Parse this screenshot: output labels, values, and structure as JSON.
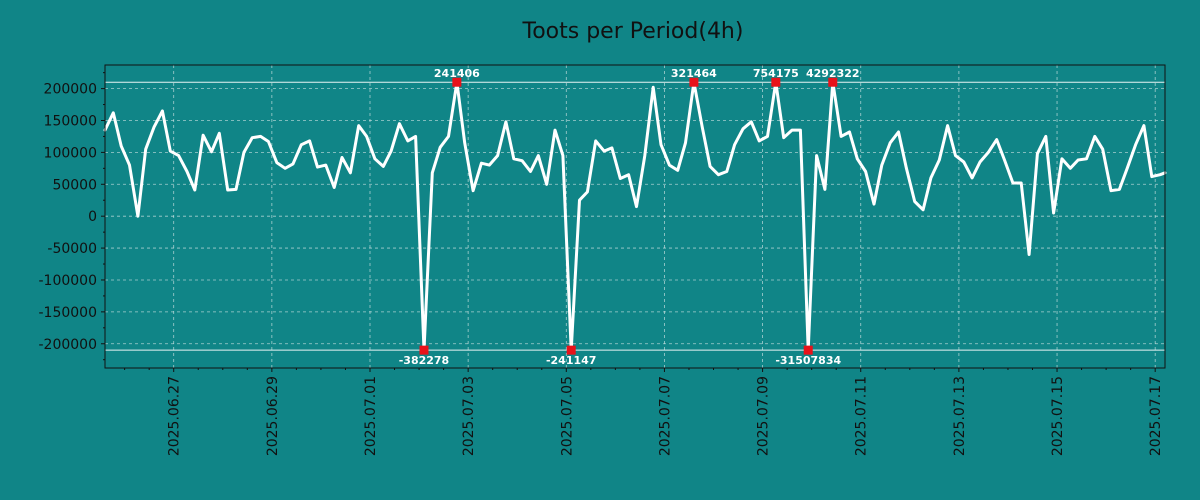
{
  "chart_data": {
    "type": "line",
    "title": "Toots per Period(4h)",
    "xlabel": "",
    "ylabel": "",
    "ylim": [
      -238000,
      237000
    ],
    "y_ticks": [
      -200000,
      -150000,
      -100000,
      -50000,
      0,
      50000,
      100000,
      150000,
      200000
    ],
    "x_tick_labels": [
      "2025.06.27",
      "2025.06.29",
      "2025.07.01",
      "2025.07.03",
      "2025.07.05",
      "2025.07.07",
      "2025.07.09",
      "2025.07.11",
      "2025.07.13",
      "2025.07.15",
      "2025.07.17"
    ],
    "x_range_days": [
      -1.4,
      20.2
    ],
    "clip_lines": [
      210000,
      -210000
    ],
    "grid": true,
    "series": [
      {
        "name": "Toots",
        "color": "#ffffff",
        "points": [
          [
            -1.4,
            135000
          ],
          [
            -1.23,
            162000
          ],
          [
            -1.07,
            110000
          ],
          [
            -0.9,
            80000
          ],
          [
            -0.73,
            0
          ],
          [
            -0.57,
            105000
          ],
          [
            -0.4,
            140000
          ],
          [
            -0.23,
            165000
          ],
          [
            -0.07,
            102000
          ],
          [
            0.1,
            95000
          ],
          [
            0.27,
            70000
          ],
          [
            0.43,
            41000
          ],
          [
            0.6,
            127000
          ],
          [
            0.77,
            101000
          ],
          [
            0.93,
            130000
          ],
          [
            1.1,
            41000
          ],
          [
            1.27,
            42000
          ],
          [
            1.43,
            100000
          ],
          [
            1.6,
            123000
          ],
          [
            1.77,
            125000
          ],
          [
            1.93,
            117000
          ],
          [
            2.1,
            84000
          ],
          [
            2.27,
            75000
          ],
          [
            2.43,
            82000
          ],
          [
            2.6,
            112000
          ],
          [
            2.77,
            118000
          ],
          [
            2.93,
            77000
          ],
          [
            3.1,
            80000
          ],
          [
            3.27,
            45000
          ],
          [
            3.43,
            92000
          ],
          [
            3.6,
            68000
          ],
          [
            3.77,
            142000
          ],
          [
            3.93,
            125000
          ],
          [
            4.1,
            90000
          ],
          [
            4.27,
            78000
          ],
          [
            4.43,
            102000
          ],
          [
            4.6,
            145000
          ],
          [
            4.77,
            118000
          ],
          [
            4.93,
            125000
          ],
          [
            5.1,
            -210000
          ],
          [
            5.27,
            68000
          ],
          [
            5.43,
            108000
          ],
          [
            5.6,
            125000
          ],
          [
            5.77,
            210000
          ],
          [
            5.93,
            115000
          ],
          [
            6.1,
            40000
          ],
          [
            6.27,
            83000
          ],
          [
            6.43,
            80000
          ],
          [
            6.6,
            95000
          ],
          [
            6.77,
            148000
          ],
          [
            6.93,
            90000
          ],
          [
            7.1,
            87000
          ],
          [
            7.27,
            70000
          ],
          [
            7.43,
            95000
          ],
          [
            7.6,
            50000
          ],
          [
            7.77,
            135000
          ],
          [
            7.93,
            95000
          ],
          [
            8.1,
            -210000
          ],
          [
            8.27,
            25000
          ],
          [
            8.43,
            38000
          ],
          [
            8.6,
            118000
          ],
          [
            8.77,
            102000
          ],
          [
            8.93,
            107000
          ],
          [
            9.1,
            59000
          ],
          [
            9.27,
            65000
          ],
          [
            9.43,
            15000
          ],
          [
            9.6,
            95000
          ],
          [
            9.77,
            202000
          ],
          [
            9.93,
            112000
          ],
          [
            10.1,
            80000
          ],
          [
            10.27,
            72000
          ],
          [
            10.43,
            115000
          ],
          [
            10.6,
            210000
          ],
          [
            10.77,
            140000
          ],
          [
            10.93,
            78000
          ],
          [
            11.1,
            65000
          ],
          [
            11.27,
            70000
          ],
          [
            11.43,
            112000
          ],
          [
            11.6,
            137000
          ],
          [
            11.77,
            148000
          ],
          [
            11.93,
            118000
          ],
          [
            12.1,
            125000
          ],
          [
            12.27,
            210000
          ],
          [
            12.43,
            123000
          ],
          [
            12.6,
            135000
          ],
          [
            12.77,
            135000
          ],
          [
            12.93,
            -210000
          ],
          [
            13.1,
            95000
          ],
          [
            13.27,
            42000
          ],
          [
            13.43,
            210000
          ],
          [
            13.6,
            125000
          ],
          [
            13.77,
            132000
          ],
          [
            13.93,
            90000
          ],
          [
            14.1,
            70000
          ],
          [
            14.27,
            19000
          ],
          [
            14.43,
            80000
          ],
          [
            14.6,
            115000
          ],
          [
            14.77,
            132000
          ],
          [
            14.93,
            75000
          ],
          [
            15.1,
            23000
          ],
          [
            15.27,
            10000
          ],
          [
            15.43,
            60000
          ],
          [
            15.6,
            88000
          ],
          [
            15.77,
            142000
          ],
          [
            15.93,
            95000
          ],
          [
            16.1,
            85000
          ],
          [
            16.27,
            60000
          ],
          [
            16.43,
            85000
          ],
          [
            16.6,
            100000
          ],
          [
            16.77,
            120000
          ],
          [
            16.93,
            88000
          ],
          [
            17.1,
            52000
          ],
          [
            17.27,
            52000
          ],
          [
            17.43,
            -60000
          ],
          [
            17.6,
            98000
          ],
          [
            17.77,
            125000
          ],
          [
            17.93,
            5000
          ],
          [
            18.1,
            90000
          ],
          [
            18.27,
            75000
          ],
          [
            18.43,
            88000
          ],
          [
            18.6,
            90000
          ],
          [
            18.77,
            125000
          ],
          [
            18.93,
            105000
          ],
          [
            19.1,
            40000
          ],
          [
            19.27,
            42000
          ],
          [
            19.43,
            75000
          ],
          [
            19.6,
            112000
          ],
          [
            19.77,
            142000
          ],
          [
            19.93,
            62000
          ],
          [
            20.1,
            65000
          ],
          [
            20.2,
            68000
          ]
        ]
      }
    ],
    "clipped_markers": [
      {
        "day": 5.1,
        "value": -382278,
        "label": "-382278",
        "position": "bottom"
      },
      {
        "day": 5.77,
        "value": 241406,
        "label": "241406",
        "position": "top"
      },
      {
        "day": 8.1,
        "value": -241147,
        "label": "-241147",
        "position": "bottom"
      },
      {
        "day": 10.6,
        "value": 321464,
        "label": "321464",
        "position": "top"
      },
      {
        "day": 12.27,
        "value": 754175,
        "label": "754175",
        "position": "top"
      },
      {
        "day": 12.93,
        "value": -31507834,
        "label": "-31507834",
        "position": "bottom"
      },
      {
        "day": 13.43,
        "value": 4292322,
        "label": "4292322",
        "position": "top"
      }
    ],
    "marker_color": "#e8121a",
    "background": "#108587",
    "axes_facecolor": "#108587"
  }
}
